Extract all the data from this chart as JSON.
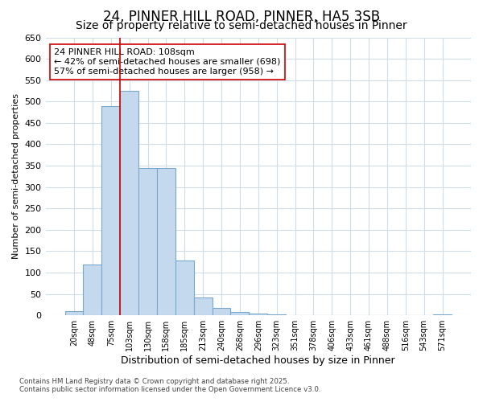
{
  "title": "24, PINNER HILL ROAD, PINNER, HA5 3SB",
  "subtitle": "Size of property relative to semi-detached houses in Pinner",
  "xlabel": "Distribution of semi-detached houses by size in Pinner",
  "ylabel": "Number of semi-detached properties",
  "footer_line1": "Contains HM Land Registry data © Crown copyright and database right 2025.",
  "footer_line2": "Contains public sector information licensed under the Open Government Licence v3.0.",
  "annotation_line1": "24 PINNER HILL ROAD: 108sqm",
  "annotation_line2": "← 42% of semi-detached houses are smaller (698)",
  "annotation_line3": "57% of semi-detached houses are larger (958) →",
  "bar_color": "#c5d9ee",
  "bar_edge_color": "#7aa8cc",
  "vline_color": "#cc0000",
  "vline_x_index": 3,
  "categories": [
    "20sqm",
    "48sqm",
    "75sqm",
    "103sqm",
    "130sqm",
    "158sqm",
    "185sqm",
    "213sqm",
    "240sqm",
    "268sqm",
    "296sqm",
    "323sqm",
    "351sqm",
    "378sqm",
    "406sqm",
    "433sqm",
    "461sqm",
    "488sqm",
    "516sqm",
    "543sqm",
    "571sqm"
  ],
  "values": [
    10,
    118,
    490,
    525,
    345,
    345,
    128,
    42,
    18,
    8,
    5,
    2,
    1,
    1,
    0,
    0,
    0,
    0,
    0,
    0,
    3
  ],
  "ylim": [
    0,
    650
  ],
  "yticks": [
    0,
    50,
    100,
    150,
    200,
    250,
    300,
    350,
    400,
    450,
    500,
    550,
    600,
    650
  ],
  "background_color": "#ffffff",
  "plot_bg_color": "#ffffff",
  "grid_color": "#d0dce8",
  "title_fontsize": 12,
  "subtitle_fontsize": 10,
  "annotation_box_color": "#ffffff",
  "annotation_box_edge_color": "#cc0000",
  "annotation_fontsize": 8
}
